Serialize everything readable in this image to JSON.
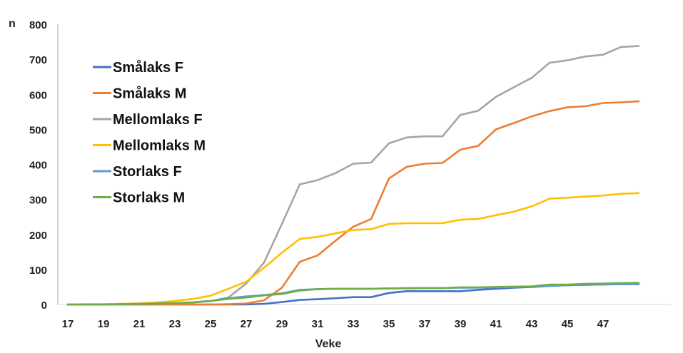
{
  "chart_data": {
    "type": "line",
    "title": "",
    "xlabel": "Veke",
    "ylabel": "n",
    "ylim": [
      0,
      800
    ],
    "yticks": [
      0,
      100,
      200,
      300,
      400,
      500,
      600,
      700,
      800
    ],
    "xticks": [
      17,
      19,
      21,
      23,
      25,
      27,
      29,
      31,
      33,
      35,
      37,
      39,
      41,
      43,
      45,
      47
    ],
    "x": [
      17,
      18,
      19,
      20,
      21,
      22,
      23,
      24,
      25,
      26,
      27,
      28,
      29,
      30,
      31,
      32,
      33,
      34,
      35,
      36,
      37,
      38,
      39,
      40,
      41,
      42,
      43,
      44,
      45,
      46,
      47,
      48,
      49
    ],
    "grid": false,
    "legend_position": "upper-left-inside",
    "series": [
      {
        "name": "Smålaks F",
        "color": "#4472C4",
        "values": [
          0,
          0,
          0,
          0,
          0,
          0,
          0,
          0,
          0,
          0,
          0,
          2,
          7,
          13,
          15,
          18,
          21,
          21,
          33,
          38,
          38,
          38,
          38,
          42,
          45,
          48,
          50,
          53,
          55,
          56,
          57,
          58,
          58
        ]
      },
      {
        "name": "Smålaks M",
        "color": "#ED7D31",
        "values": [
          0,
          0,
          0,
          0,
          0,
          0,
          0,
          0,
          0,
          1,
          3,
          12,
          48,
          122,
          140,
          182,
          222,
          244,
          360,
          393,
          402,
          404,
          442,
          453,
          500,
          518,
          537,
          552,
          563,
          566,
          575,
          577,
          580
        ]
      },
      {
        "name": "Mellomlaks F",
        "color": "#A5A5A5",
        "values": [
          0,
          0,
          0,
          1,
          2,
          3,
          4,
          6,
          10,
          20,
          60,
          120,
          230,
          343,
          355,
          375,
          402,
          405,
          460,
          477,
          480,
          480,
          541,
          553,
          593,
          620,
          647,
          690,
          697,
          708,
          713,
          735,
          738
        ]
      },
      {
        "name": "Mellomlaks M",
        "color": "#FFC000",
        "values": [
          0,
          1,
          1,
          2,
          3,
          6,
          10,
          16,
          25,
          45,
          65,
          105,
          148,
          187,
          193,
          203,
          213,
          215,
          230,
          232,
          232,
          232,
          242,
          244,
          255,
          265,
          280,
          302,
          305,
          308,
          311,
          316,
          318
        ]
      },
      {
        "name": "Storlaks F",
        "color": "#5B9BD5",
        "values": [
          0,
          0,
          0,
          1,
          2,
          3,
          4,
          6,
          10,
          18,
          23,
          27,
          32,
          42,
          44,
          45,
          45,
          45,
          46,
          47,
          47,
          47,
          48,
          48,
          49,
          50,
          51,
          53,
          55,
          56,
          57,
          58,
          58
        ]
      },
      {
        "name": "Storlaks M",
        "color": "#70AD47",
        "values": [
          0,
          0,
          0,
          1,
          2,
          3,
          4,
          6,
          10,
          16,
          20,
          26,
          30,
          40,
          44,
          45,
          45,
          45,
          46,
          46,
          47,
          47,
          49,
          49,
          50,
          51,
          52,
          57,
          57,
          59,
          60,
          61,
          62
        ]
      }
    ]
  }
}
